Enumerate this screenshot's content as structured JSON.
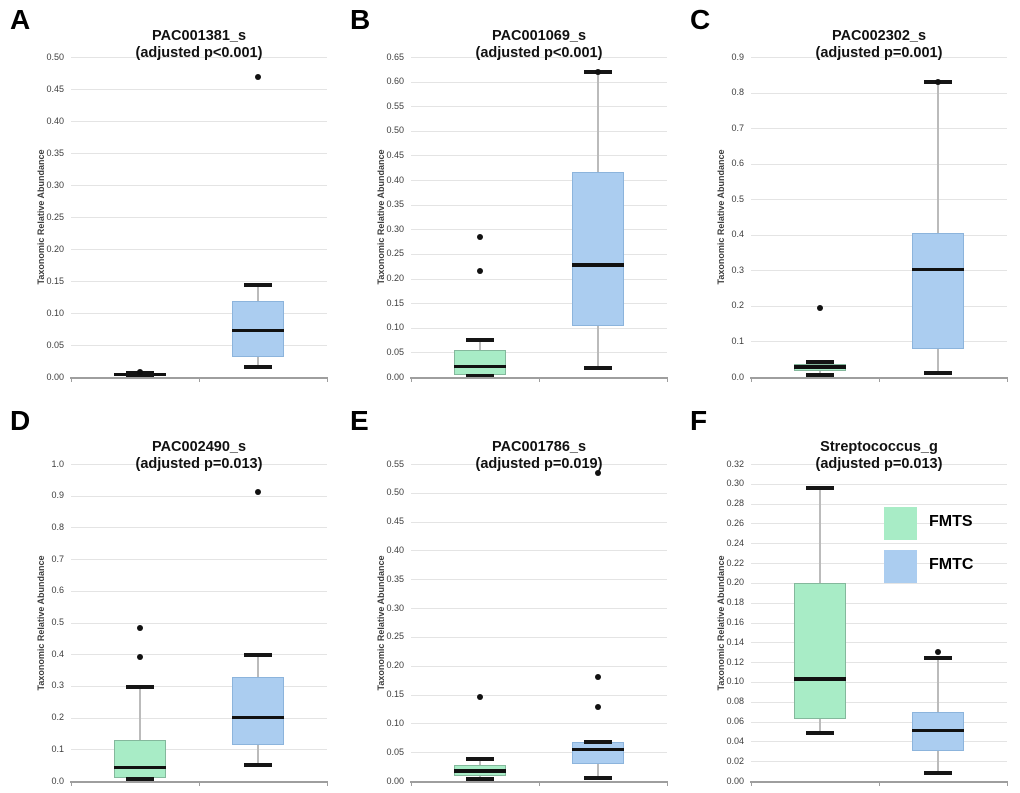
{
  "figure": {
    "ylabel": "Taxonomic Relative Abundance",
    "colors": {
      "fmts_fill": "#a8ecc6",
      "fmts_border": "#84b89c",
      "fmtc_fill": "#abcdf0",
      "fmtc_border": "#8cb4dc",
      "median": "#111111",
      "whisker": "#bbbbbb",
      "gridline": "#e4e4e4",
      "axis": "#9e9e9e",
      "tick_text": "#3d3d3d"
    },
    "legend": {
      "items": [
        {
          "label": "FMTS",
          "color": "#a8ecc6"
        },
        {
          "label": "FMTC",
          "color": "#abcdf0"
        }
      ]
    }
  },
  "chart_data": [
    {
      "type": "box",
      "panel": "A",
      "title": "PAC001381_s",
      "subtitle": "(adjusted p<0.001)",
      "ylabel": "Taxonomic Relative Abundance",
      "ylim": [
        0,
        0.5
      ],
      "ytick_step": 0.05,
      "ytick_decimals": 2,
      "grid": true,
      "groups": [
        {
          "name": "FMTS",
          "whisker_low": 0.0,
          "q1": 0.001,
          "median": 0.004,
          "q3": 0.006,
          "whisker_high": 0.007,
          "outliers": [
            0.008
          ]
        },
        {
          "name": "FMTC",
          "whisker_low": 0.016,
          "q1": 0.031,
          "median": 0.073,
          "q3": 0.118,
          "whisker_high": 0.144,
          "outliers": [
            0.468
          ]
        }
      ]
    },
    {
      "type": "box",
      "panel": "B",
      "title": "PAC001069_s",
      "subtitle": "(adjusted p<0.001)",
      "ylabel": "Taxonomic Relative Abundance",
      "ylim": [
        0,
        0.65
      ],
      "ytick_step": 0.05,
      "ytick_decimals": 2,
      "grid": true,
      "groups": [
        {
          "name": "FMTS",
          "whisker_low": 0.002,
          "q1": 0.005,
          "median": 0.021,
          "q3": 0.055,
          "whisker_high": 0.076,
          "outliers": [
            0.215,
            0.285
          ]
        },
        {
          "name": "FMTC",
          "whisker_low": 0.018,
          "q1": 0.103,
          "median": 0.227,
          "q3": 0.417,
          "whisker_high": 0.62,
          "outliers": [
            0.62
          ]
        }
      ]
    },
    {
      "type": "box",
      "panel": "C",
      "title": "PAC002302_s",
      "subtitle": "(adjusted p=0.001)",
      "ylabel": "Taxonomic Relative Abundance",
      "ylim": [
        0,
        0.9
      ],
      "ytick_step": 0.1,
      "ytick_decimals": 1,
      "grid": true,
      "groups": [
        {
          "name": "FMTS",
          "whisker_low": 0.005,
          "q1": 0.018,
          "median": 0.028,
          "q3": 0.037,
          "whisker_high": 0.042,
          "outliers": [
            0.195
          ]
        },
        {
          "name": "FMTC",
          "whisker_low": 0.012,
          "q1": 0.078,
          "median": 0.302,
          "q3": 0.405,
          "whisker_high": 0.83,
          "outliers": [
            0.83
          ]
        }
      ]
    },
    {
      "type": "box",
      "panel": "D",
      "title": "PAC002490_s",
      "subtitle": "(adjusted p=0.013)",
      "ylabel": "Taxonomic Relative Abundance",
      "ylim": [
        0,
        1.0
      ],
      "ytick_step": 0.1,
      "ytick_decimals": 1,
      "grid": true,
      "groups": [
        {
          "name": "FMTS",
          "whisker_low": 0.005,
          "q1": 0.01,
          "median": 0.042,
          "q3": 0.128,
          "whisker_high": 0.295,
          "outliers": [
            0.39,
            0.483
          ]
        },
        {
          "name": "FMTC",
          "whisker_low": 0.052,
          "q1": 0.112,
          "median": 0.2,
          "q3": 0.327,
          "whisker_high": 0.397,
          "outliers": [
            0.912
          ]
        }
      ]
    },
    {
      "type": "box",
      "panel": "E",
      "title": "PAC001786_s",
      "subtitle": "(adjusted p=0.019)",
      "ylabel": "Taxonomic Relative Abundance",
      "ylim": [
        0,
        0.55
      ],
      "ytick_step": 0.05,
      "ytick_decimals": 2,
      "grid": true,
      "groups": [
        {
          "name": "FMTS",
          "whisker_low": 0.003,
          "q1": 0.008,
          "median": 0.017,
          "q3": 0.028,
          "whisker_high": 0.038,
          "outliers": [
            0.145
          ]
        },
        {
          "name": "FMTC",
          "whisker_low": 0.005,
          "q1": 0.03,
          "median": 0.055,
          "q3": 0.068,
          "whisker_high": 0.068,
          "outliers": [
            0.128,
            0.181,
            0.535
          ]
        }
      ]
    },
    {
      "type": "box",
      "panel": "F",
      "title": "Streptococcus_g",
      "subtitle": "(adjusted p=0.013)",
      "ylabel": "Taxonomic Relative Abundance",
      "ylim": [
        0,
        0.32
      ],
      "ytick_step": 0.02,
      "ytick_decimals": 2,
      "grid": true,
      "show_legend": true,
      "groups": [
        {
          "name": "FMTS",
          "whisker_low": 0.048,
          "q1": 0.063,
          "median": 0.103,
          "q3": 0.2,
          "whisker_high": 0.296,
          "outliers": []
        },
        {
          "name": "FMTC",
          "whisker_low": 0.008,
          "q1": 0.03,
          "median": 0.051,
          "q3": 0.07,
          "whisker_high": 0.124,
          "outliers": [
            0.13
          ]
        }
      ]
    }
  ]
}
